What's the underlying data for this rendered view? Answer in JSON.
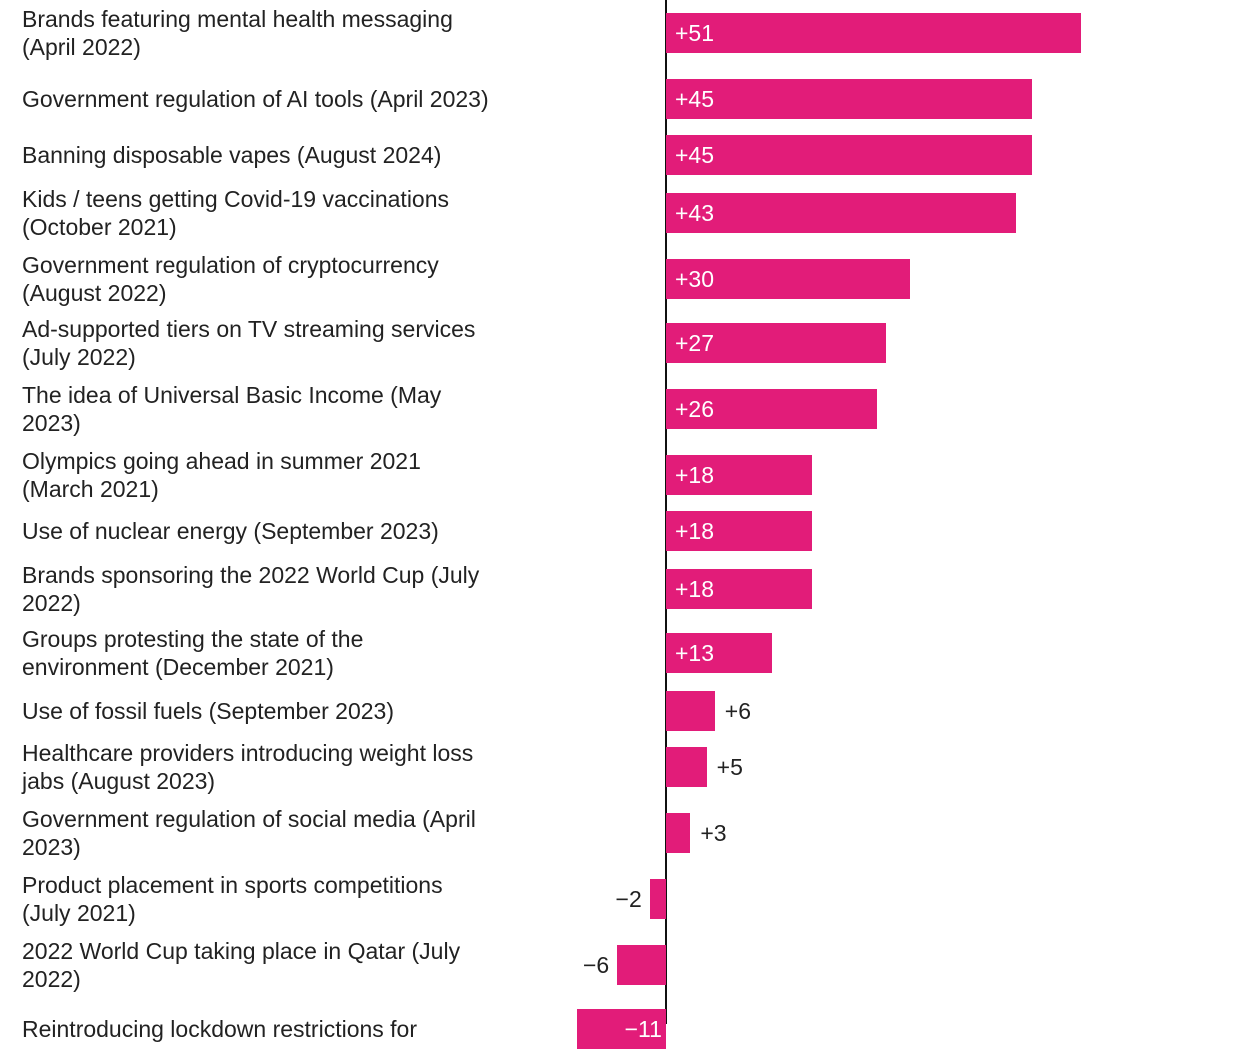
{
  "chart_data": {
    "type": "bar",
    "orientation": "horizontal",
    "title": "",
    "xlabel": "",
    "ylabel": "",
    "bar_color": "#e21c79",
    "grid": false,
    "categories": [
      "Brands featuring mental health messaging (April 2022)",
      "Government regulation of AI tools (April 2023)",
      "Banning disposable vapes (August 2024)",
      "Kids / teens getting Covid-19 vaccinations (October 2021)",
      "Government regulation of cryptocurrency (August 2022)",
      "Ad-supported tiers on TV streaming services (July 2022)",
      "The idea of Universal Basic Income (May 2023)",
      "Olympics going ahead in summer 2021 (March 2021)",
      "Use of nuclear energy (September 2023)",
      "Brands sponsoring the 2022 World Cup (July 2022)",
      "Groups protesting the state of the environment (December 2021)",
      "Use of fossil fuels (September 2023)",
      "Healthcare providers introducing weight loss jabs (August 2023)",
      "Government regulation of social media (April 2023)",
      "Product placement in sports competitions (July 2021)",
      "2022 World Cup taking place in Qatar (July 2022)",
      "Reintroducing lockdown restrictions for"
    ],
    "values": [
      51,
      45,
      45,
      43,
      30,
      27,
      26,
      18,
      18,
      18,
      13,
      6,
      5,
      3,
      -2,
      -6,
      -11
    ],
    "labels": [
      "+51",
      "+45",
      "+45",
      "+43",
      "+30",
      "+27",
      "+26",
      "+18",
      "+18",
      "+18",
      "+13",
      "+6",
      "+5",
      "+3",
      "−2",
      "−6",
      "−11"
    ]
  }
}
